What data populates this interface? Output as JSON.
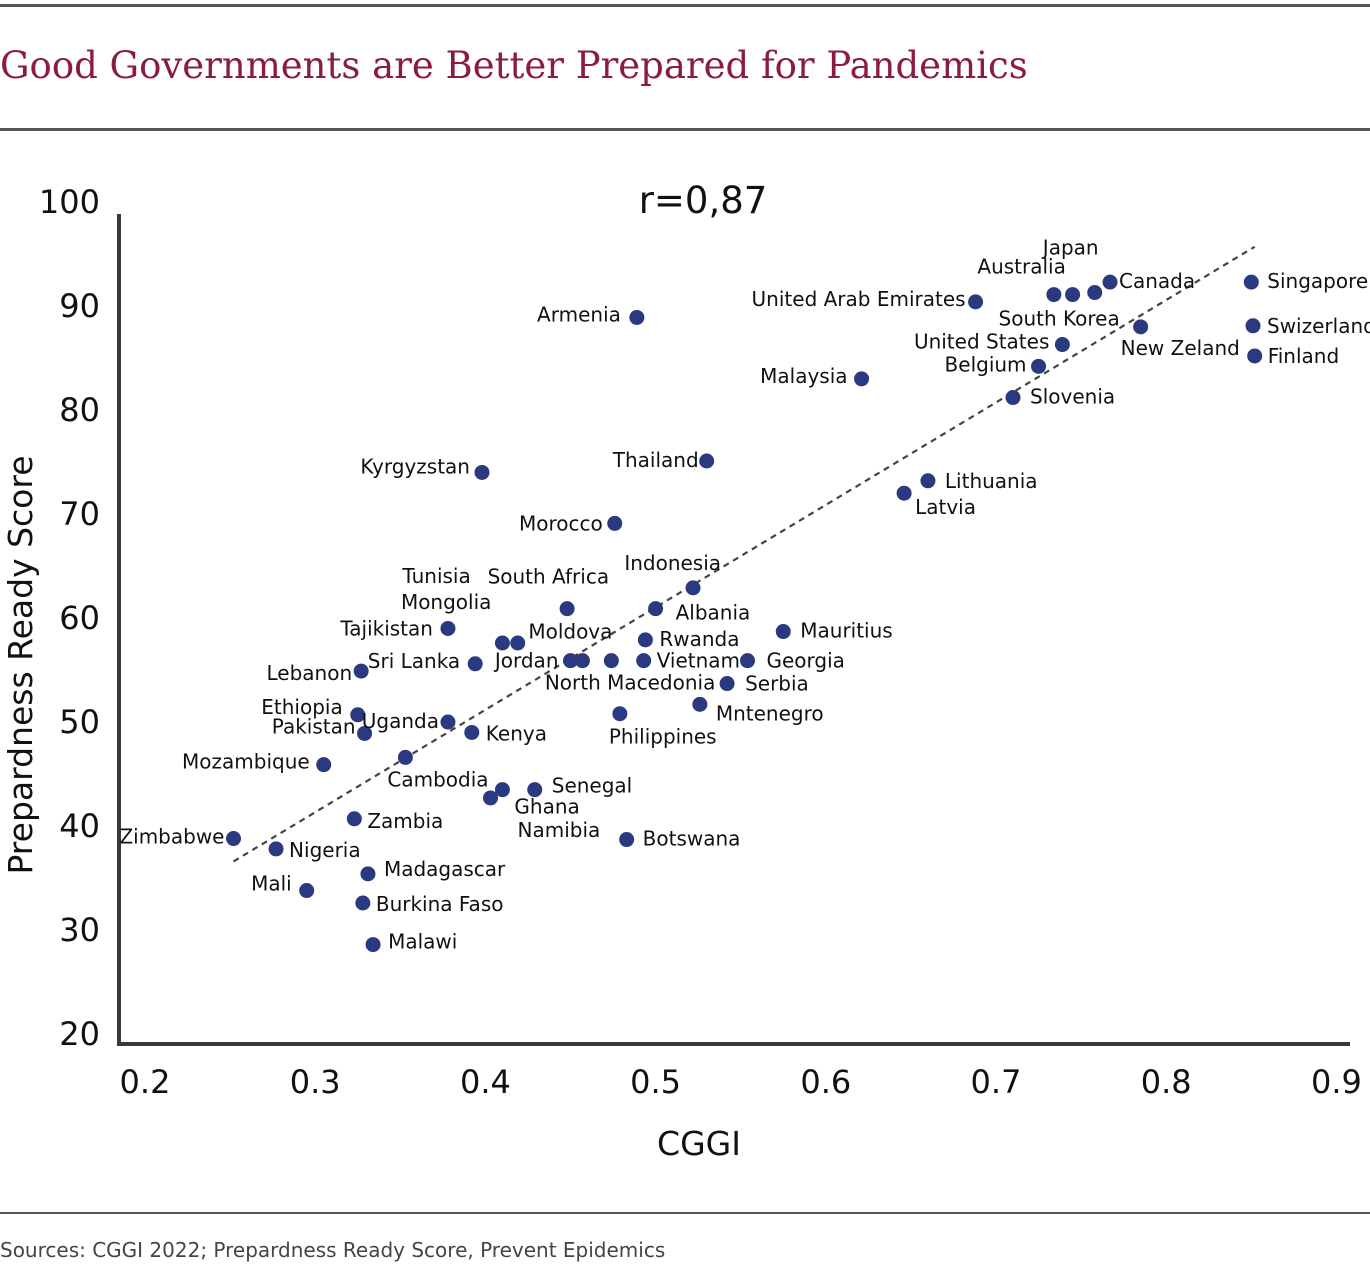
{
  "header": {
    "title": "Good Governments are Better Prepared for Pandemics"
  },
  "footer": {
    "source": "Sources: CGGI 2022; Prepardness Ready Score, Prevent Epidemics"
  },
  "chart_data": {
    "type": "scatter",
    "annotation": "r=0,87",
    "xlabel": "CGGI",
    "ylabel": "Prepardness Ready Score",
    "xlim": [
      0.2,
      0.9
    ],
    "ylim": [
      20,
      100
    ],
    "xticks": [
      "0.2",
      "0.3",
      "0.4",
      "0.5",
      "0.6",
      "0.7",
      "0.8",
      "0.9"
    ],
    "yticks": [
      "20",
      "30",
      "40",
      "50",
      "60",
      "70",
      "80",
      "90",
      "100"
    ],
    "grid": false,
    "point_color": "#2b3a80",
    "trendline": {
      "style": "dashed",
      "color": "#444444",
      "x": [
        0.252,
        0.852
      ],
      "y": [
        36.5,
        95.6
      ]
    },
    "points": [
      {
        "x": 0.252,
        "y": 38.7,
        "label": "Zimbabwe"
      },
      {
        "x": 0.277,
        "y": 37.7,
        "label": "Nigeria"
      },
      {
        "x": 0.295,
        "y": 33.7,
        "label": "Mali"
      },
      {
        "x": 0.305,
        "y": 45.8,
        "label": "Mozambique"
      },
      {
        "x": 0.323,
        "y": 40.6,
        "label": "Zambia"
      },
      {
        "x": 0.325,
        "y": 50.6,
        "label": "Ethiopia"
      },
      {
        "x": 0.327,
        "y": 54.8,
        "label": "Lebanon"
      },
      {
        "x": 0.328,
        "y": 32.5,
        "label": "Burkina Faso"
      },
      {
        "x": 0.329,
        "y": 48.8,
        "label": "Pakistan"
      },
      {
        "x": 0.331,
        "y": 35.3,
        "label": "Madagascar"
      },
      {
        "x": 0.334,
        "y": 28.5,
        "label": "Malawi"
      },
      {
        "x": 0.353,
        "y": 46.5,
        "label": "Cambodia"
      },
      {
        "x": 0.378,
        "y": 58.9,
        "label": "Tajikistan"
      },
      {
        "x": 0.378,
        "y": 49.9,
        "label": "Uganda"
      },
      {
        "x": 0.392,
        "y": 48.9,
        "label": "Kenya"
      },
      {
        "x": 0.394,
        "y": 55.5,
        "label": "Sri Lanka"
      },
      {
        "x": 0.398,
        "y": 73.9,
        "label": "Kyrgyzstan"
      },
      {
        "x": 0.403,
        "y": 42.6,
        "label": "Namibia"
      },
      {
        "x": 0.41,
        "y": 43.4,
        "label": "Ghana"
      },
      {
        "x": 0.41,
        "y": 57.5,
        "label": "Mongolia"
      },
      {
        "x": 0.419,
        "y": 57.5,
        "label": "Tunisia"
      },
      {
        "x": 0.429,
        "y": 43.4,
        "label": "Senegal"
      },
      {
        "x": 0.448,
        "y": 60.8,
        "label": "South Africa"
      },
      {
        "x": 0.45,
        "y": 55.8,
        "label": "Jordan"
      },
      {
        "x": 0.457,
        "y": 55.8,
        "label": "Moldova"
      },
      {
        "x": 0.474,
        "y": 55.8,
        "label": "North Macedonia"
      },
      {
        "x": 0.476,
        "y": 69.0,
        "label": "Morocco"
      },
      {
        "x": 0.479,
        "y": 50.7,
        "label": "Philippines"
      },
      {
        "x": 0.483,
        "y": 38.6,
        "label": "Botswana"
      },
      {
        "x": 0.489,
        "y": 88.8,
        "label": "Armenia"
      },
      {
        "x": 0.493,
        "y": 55.8,
        "label": "Vietnam"
      },
      {
        "x": 0.494,
        "y": 57.8,
        "label": "Rwanda"
      },
      {
        "x": 0.5,
        "y": 60.8,
        "label": "Albania"
      },
      {
        "x": 0.522,
        "y": 62.8,
        "label": "Indonesia"
      },
      {
        "x": 0.526,
        "y": 51.6,
        "label": "Mntenegro"
      },
      {
        "x": 0.53,
        "y": 75.0,
        "label": "Thailand"
      },
      {
        "x": 0.542,
        "y": 53.6,
        "label": "Serbia"
      },
      {
        "x": 0.554,
        "y": 55.8,
        "label": "Georgia"
      },
      {
        "x": 0.575,
        "y": 58.6,
        "label": "Mauritius"
      },
      {
        "x": 0.621,
        "y": 82.9,
        "label": "Malaysia"
      },
      {
        "x": 0.646,
        "y": 71.9,
        "label": "Latvia"
      },
      {
        "x": 0.66,
        "y": 73.1,
        "label": "Lithuania"
      },
      {
        "x": 0.688,
        "y": 90.3,
        "label": "United Arab Emirates"
      },
      {
        "x": 0.71,
        "y": 81.1,
        "label": "Slovenia"
      },
      {
        "x": 0.725,
        "y": 84.1,
        "label": "Belgium"
      },
      {
        "x": 0.734,
        "y": 91.0,
        "label": "Australia"
      },
      {
        "x": 0.739,
        "y": 86.2,
        "label": "United States"
      },
      {
        "x": 0.745,
        "y": 91.0,
        "label": "Japan"
      },
      {
        "x": 0.758,
        "y": 91.2,
        "label": "South Korea"
      },
      {
        "x": 0.767,
        "y": 92.2,
        "label": "Canada"
      },
      {
        "x": 0.785,
        "y": 87.9,
        "label": "New Zeland"
      },
      {
        "x": 0.85,
        "y": 92.2,
        "label": "Singapore"
      },
      {
        "x": 0.851,
        "y": 88.0,
        "label": "Swizerland"
      },
      {
        "x": 0.852,
        "y": 85.1,
        "label": "Finland"
      }
    ]
  }
}
